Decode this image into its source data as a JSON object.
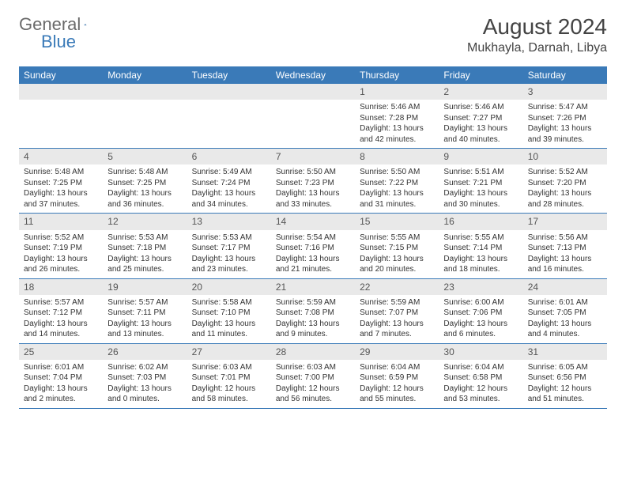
{
  "brand": {
    "part1": "General",
    "part2": "Blue"
  },
  "title": "August 2024",
  "location": "Mukhayla, Darnah, Libya",
  "colors": {
    "header_bg": "#3a7ab8",
    "daynum_bg": "#e9e9e9",
    "text": "#333333",
    "logo_gray": "#6a6a6a",
    "logo_blue": "#3a7ab8"
  },
  "day_names": [
    "Sunday",
    "Monday",
    "Tuesday",
    "Wednesday",
    "Thursday",
    "Friday",
    "Saturday"
  ],
  "weeks": [
    [
      null,
      null,
      null,
      null,
      {
        "d": "1",
        "sr": "5:46 AM",
        "ss": "7:28 PM",
        "dl": "13 hours and 42 minutes."
      },
      {
        "d": "2",
        "sr": "5:46 AM",
        "ss": "7:27 PM",
        "dl": "13 hours and 40 minutes."
      },
      {
        "d": "3",
        "sr": "5:47 AM",
        "ss": "7:26 PM",
        "dl": "13 hours and 39 minutes."
      }
    ],
    [
      {
        "d": "4",
        "sr": "5:48 AM",
        "ss": "7:25 PM",
        "dl": "13 hours and 37 minutes."
      },
      {
        "d": "5",
        "sr": "5:48 AM",
        "ss": "7:25 PM",
        "dl": "13 hours and 36 minutes."
      },
      {
        "d": "6",
        "sr": "5:49 AM",
        "ss": "7:24 PM",
        "dl": "13 hours and 34 minutes."
      },
      {
        "d": "7",
        "sr": "5:50 AM",
        "ss": "7:23 PM",
        "dl": "13 hours and 33 minutes."
      },
      {
        "d": "8",
        "sr": "5:50 AM",
        "ss": "7:22 PM",
        "dl": "13 hours and 31 minutes."
      },
      {
        "d": "9",
        "sr": "5:51 AM",
        "ss": "7:21 PM",
        "dl": "13 hours and 30 minutes."
      },
      {
        "d": "10",
        "sr": "5:52 AM",
        "ss": "7:20 PM",
        "dl": "13 hours and 28 minutes."
      }
    ],
    [
      {
        "d": "11",
        "sr": "5:52 AM",
        "ss": "7:19 PM",
        "dl": "13 hours and 26 minutes."
      },
      {
        "d": "12",
        "sr": "5:53 AM",
        "ss": "7:18 PM",
        "dl": "13 hours and 25 minutes."
      },
      {
        "d": "13",
        "sr": "5:53 AM",
        "ss": "7:17 PM",
        "dl": "13 hours and 23 minutes."
      },
      {
        "d": "14",
        "sr": "5:54 AM",
        "ss": "7:16 PM",
        "dl": "13 hours and 21 minutes."
      },
      {
        "d": "15",
        "sr": "5:55 AM",
        "ss": "7:15 PM",
        "dl": "13 hours and 20 minutes."
      },
      {
        "d": "16",
        "sr": "5:55 AM",
        "ss": "7:14 PM",
        "dl": "13 hours and 18 minutes."
      },
      {
        "d": "17",
        "sr": "5:56 AM",
        "ss": "7:13 PM",
        "dl": "13 hours and 16 minutes."
      }
    ],
    [
      {
        "d": "18",
        "sr": "5:57 AM",
        "ss": "7:12 PM",
        "dl": "13 hours and 14 minutes."
      },
      {
        "d": "19",
        "sr": "5:57 AM",
        "ss": "7:11 PM",
        "dl": "13 hours and 13 minutes."
      },
      {
        "d": "20",
        "sr": "5:58 AM",
        "ss": "7:10 PM",
        "dl": "13 hours and 11 minutes."
      },
      {
        "d": "21",
        "sr": "5:59 AM",
        "ss": "7:08 PM",
        "dl": "13 hours and 9 minutes."
      },
      {
        "d": "22",
        "sr": "5:59 AM",
        "ss": "7:07 PM",
        "dl": "13 hours and 7 minutes."
      },
      {
        "d": "23",
        "sr": "6:00 AM",
        "ss": "7:06 PM",
        "dl": "13 hours and 6 minutes."
      },
      {
        "d": "24",
        "sr": "6:01 AM",
        "ss": "7:05 PM",
        "dl": "13 hours and 4 minutes."
      }
    ],
    [
      {
        "d": "25",
        "sr": "6:01 AM",
        "ss": "7:04 PM",
        "dl": "13 hours and 2 minutes."
      },
      {
        "d": "26",
        "sr": "6:02 AM",
        "ss": "7:03 PM",
        "dl": "13 hours and 0 minutes."
      },
      {
        "d": "27",
        "sr": "6:03 AM",
        "ss": "7:01 PM",
        "dl": "12 hours and 58 minutes."
      },
      {
        "d": "28",
        "sr": "6:03 AM",
        "ss": "7:00 PM",
        "dl": "12 hours and 56 minutes."
      },
      {
        "d": "29",
        "sr": "6:04 AM",
        "ss": "6:59 PM",
        "dl": "12 hours and 55 minutes."
      },
      {
        "d": "30",
        "sr": "6:04 AM",
        "ss": "6:58 PM",
        "dl": "12 hours and 53 minutes."
      },
      {
        "d": "31",
        "sr": "6:05 AM",
        "ss": "6:56 PM",
        "dl": "12 hours and 51 minutes."
      }
    ]
  ],
  "labels": {
    "sunrise": "Sunrise:",
    "sunset": "Sunset:",
    "daylight": "Daylight:"
  }
}
